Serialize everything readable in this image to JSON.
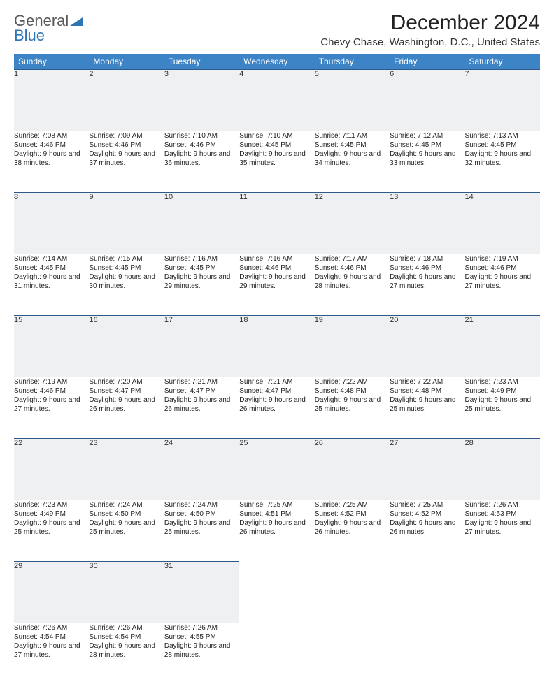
{
  "logo": {
    "line1": "General",
    "line2": "Blue"
  },
  "title": "December 2024",
  "location": "Chevy Chase, Washington, D.C., United States",
  "header_bg": "#3d84c6",
  "daynum_bg": "#eef0f2",
  "border_color": "#2e5a8a",
  "weekdays": [
    "Sunday",
    "Monday",
    "Tuesday",
    "Wednesday",
    "Thursday",
    "Friday",
    "Saturday"
  ],
  "weeks": [
    [
      {
        "d": "1",
        "sr": "7:08 AM",
        "ss": "4:46 PM",
        "dl": "9 hours and 38 minutes."
      },
      {
        "d": "2",
        "sr": "7:09 AM",
        "ss": "4:46 PM",
        "dl": "9 hours and 37 minutes."
      },
      {
        "d": "3",
        "sr": "7:10 AM",
        "ss": "4:46 PM",
        "dl": "9 hours and 36 minutes."
      },
      {
        "d": "4",
        "sr": "7:10 AM",
        "ss": "4:45 PM",
        "dl": "9 hours and 35 minutes."
      },
      {
        "d": "5",
        "sr": "7:11 AM",
        "ss": "4:45 PM",
        "dl": "9 hours and 34 minutes."
      },
      {
        "d": "6",
        "sr": "7:12 AM",
        "ss": "4:45 PM",
        "dl": "9 hours and 33 minutes."
      },
      {
        "d": "7",
        "sr": "7:13 AM",
        "ss": "4:45 PM",
        "dl": "9 hours and 32 minutes."
      }
    ],
    [
      {
        "d": "8",
        "sr": "7:14 AM",
        "ss": "4:45 PM",
        "dl": "9 hours and 31 minutes."
      },
      {
        "d": "9",
        "sr": "7:15 AM",
        "ss": "4:45 PM",
        "dl": "9 hours and 30 minutes."
      },
      {
        "d": "10",
        "sr": "7:16 AM",
        "ss": "4:45 PM",
        "dl": "9 hours and 29 minutes."
      },
      {
        "d": "11",
        "sr": "7:16 AM",
        "ss": "4:46 PM",
        "dl": "9 hours and 29 minutes."
      },
      {
        "d": "12",
        "sr": "7:17 AM",
        "ss": "4:46 PM",
        "dl": "9 hours and 28 minutes."
      },
      {
        "d": "13",
        "sr": "7:18 AM",
        "ss": "4:46 PM",
        "dl": "9 hours and 27 minutes."
      },
      {
        "d": "14",
        "sr": "7:19 AM",
        "ss": "4:46 PM",
        "dl": "9 hours and 27 minutes."
      }
    ],
    [
      {
        "d": "15",
        "sr": "7:19 AM",
        "ss": "4:46 PM",
        "dl": "9 hours and 27 minutes."
      },
      {
        "d": "16",
        "sr": "7:20 AM",
        "ss": "4:47 PM",
        "dl": "9 hours and 26 minutes."
      },
      {
        "d": "17",
        "sr": "7:21 AM",
        "ss": "4:47 PM",
        "dl": "9 hours and 26 minutes."
      },
      {
        "d": "18",
        "sr": "7:21 AM",
        "ss": "4:47 PM",
        "dl": "9 hours and 26 minutes."
      },
      {
        "d": "19",
        "sr": "7:22 AM",
        "ss": "4:48 PM",
        "dl": "9 hours and 25 minutes."
      },
      {
        "d": "20",
        "sr": "7:22 AM",
        "ss": "4:48 PM",
        "dl": "9 hours and 25 minutes."
      },
      {
        "d": "21",
        "sr": "7:23 AM",
        "ss": "4:49 PM",
        "dl": "9 hours and 25 minutes."
      }
    ],
    [
      {
        "d": "22",
        "sr": "7:23 AM",
        "ss": "4:49 PM",
        "dl": "9 hours and 25 minutes."
      },
      {
        "d": "23",
        "sr": "7:24 AM",
        "ss": "4:50 PM",
        "dl": "9 hours and 25 minutes."
      },
      {
        "d": "24",
        "sr": "7:24 AM",
        "ss": "4:50 PM",
        "dl": "9 hours and 25 minutes."
      },
      {
        "d": "25",
        "sr": "7:25 AM",
        "ss": "4:51 PM",
        "dl": "9 hours and 26 minutes."
      },
      {
        "d": "26",
        "sr": "7:25 AM",
        "ss": "4:52 PM",
        "dl": "9 hours and 26 minutes."
      },
      {
        "d": "27",
        "sr": "7:25 AM",
        "ss": "4:52 PM",
        "dl": "9 hours and 26 minutes."
      },
      {
        "d": "28",
        "sr": "7:26 AM",
        "ss": "4:53 PM",
        "dl": "9 hours and 27 minutes."
      }
    ],
    [
      {
        "d": "29",
        "sr": "7:26 AM",
        "ss": "4:54 PM",
        "dl": "9 hours and 27 minutes."
      },
      {
        "d": "30",
        "sr": "7:26 AM",
        "ss": "4:54 PM",
        "dl": "9 hours and 28 minutes."
      },
      {
        "d": "31",
        "sr": "7:26 AM",
        "ss": "4:55 PM",
        "dl": "9 hours and 28 minutes."
      },
      null,
      null,
      null,
      null
    ]
  ],
  "labels": {
    "sunrise": "Sunrise: ",
    "sunset": "Sunset: ",
    "daylight": "Daylight: "
  }
}
